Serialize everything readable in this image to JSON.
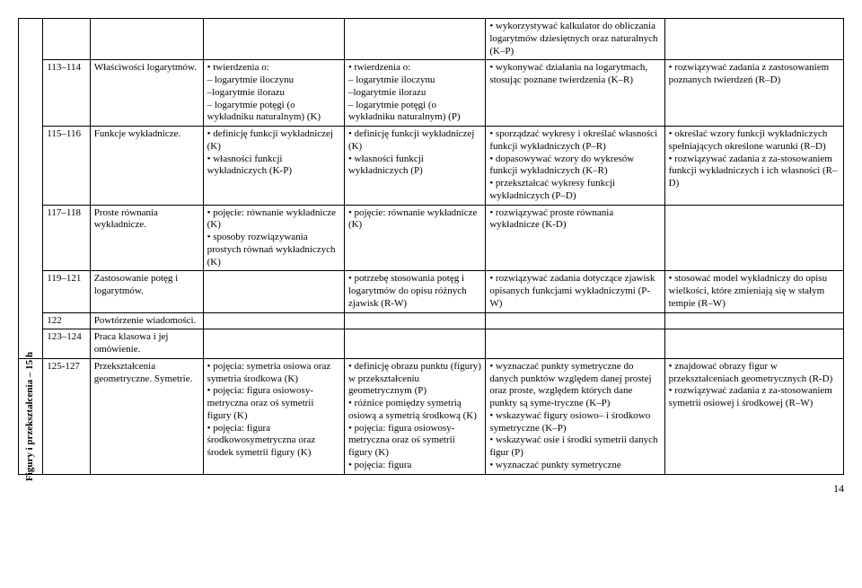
{
  "pageNumber": "14",
  "sidebar": {
    "label": "Figury i przekształcenia – 15 h"
  },
  "rows": [
    {
      "num": "",
      "topic": "",
      "c3": "",
      "c4": "",
      "c5": "• wykorzystywać kalkulator do obliczania logarytmów dziesiętnych oraz naturalnych (K–P)",
      "c6": ""
    },
    {
      "num": "113–114",
      "topic": "Właściwości logarytmów.",
      "c3": "• twierdzenia o:\n– logarytmie iloczynu\n–logarytmie ilorazu\n– logarytmie potęgi (o wykładniku naturalnym) (K)",
      "c4": "• twierdzenia o:\n– logarytmie iloczynu\n–logarytmie ilorazu\n– logarytmie potęgi (o wykładniku naturalnym) (P)",
      "c5": "• wykonywać działania na logarytmach, stosując poznane twierdzenia (K–R)",
      "c6": "• rozwiązywać zadania z zastosowaniem poznanych twierdzeń (R–D)"
    },
    {
      "num": "115–116",
      "topic": "Funkcje wykładnicze.",
      "c3": "• definicję funkcji wykładniczej (K)\n• własności funkcji wykładniczych (K-P)",
      "c4": "• definicję funkcji wykładniczej (K)\n• własności funkcji wykładniczych (P)",
      "c5": "• sporządzać wykresy i określać własności funkcji wykładniczych (P–R)\n• dopasowywać wzory do wykresów funkcji wykładniczych (K–R)\n• przekształcać wykresy funkcji wykładniczych (P–D)",
      "c6": "• określać wzory funkcji wykładniczych spełniających określone warunki (R–D)\n• rozwiązywać zadania z za-stosowaniem funkcji wykładniczych i ich własności (R–D)"
    },
    {
      "num": "117–118",
      "topic": "Proste równania wykładnicze.",
      "c3": "• pojęcie: równanie wykładnicze (K)\n• sposoby rozwiązywania prostych równań wykładniczych (K)",
      "c4": "• pojęcie: równanie wykładnicze (K)",
      "c5": "• rozwiązywać proste równania wykładnicze (K-D)",
      "c6": ""
    },
    {
      "num": "119–121",
      "topic": "Zastosowanie potęg i logarytmów.",
      "c3": "",
      "c4": "• potrzebę stosowania potęg i logarytmów do opisu różnych zjawisk (R-W)",
      "c5": "• rozwiązywać zadania dotyczące zjawisk opisanych funkcjami wykładniczymi (P-W)",
      "c6": "• stosować model wykładniczy do opisu wielkości, które zmieniają się w stałym tempie (R–W)"
    },
    {
      "num": "122",
      "topic": "Powtórzenie wiadomości.",
      "c3": "",
      "c4": "",
      "c5": "",
      "c6": ""
    },
    {
      "num": "123–124",
      "topic": "Praca klasowa i jej omówienie.",
      "c3": "",
      "c4": "",
      "c5": "",
      "c6": ""
    },
    {
      "num": "125-127",
      "topic": "Przekształcenia geometryczne. Symetrie.",
      "c3": "• pojęcia: symetria osiowa oraz symetria środkowa (K)\n• pojęcia: figura osiowosy-metryczna oraz oś symetrii figury (K)\n• pojęcia: figura środkowosymetryczna oraz środek symetrii figury (K)",
      "c4": "• definicję obrazu punktu (figury) w przekształceniu geometrycznym (P)\n• różnice pomiędzy symetrią osiową a symetrią środkową (K)\n• pojęcia: figura osiowosy-metryczna oraz oś symetrii figury (K)\n• pojęcia: figura",
      "c5": "• wyznaczać punkty symetryczne do danych punktów względem danej prostej oraz proste, względem których dane punkty są syme-tryczne (K–P)\n• wskazywać figury osiowo– i środkowo symetryczne (K–P)\n• wskazywać osie i środki symetrii danych figur (P)\n• wyznaczać punkty symetryczne",
      "c6": "• znajdować obrazy figur w przekształceniach geometrycznych (R-D)\n• rozwiązywać zadania z za-stosowaniem symetrii osiowej i środkowej (R–W)"
    }
  ]
}
